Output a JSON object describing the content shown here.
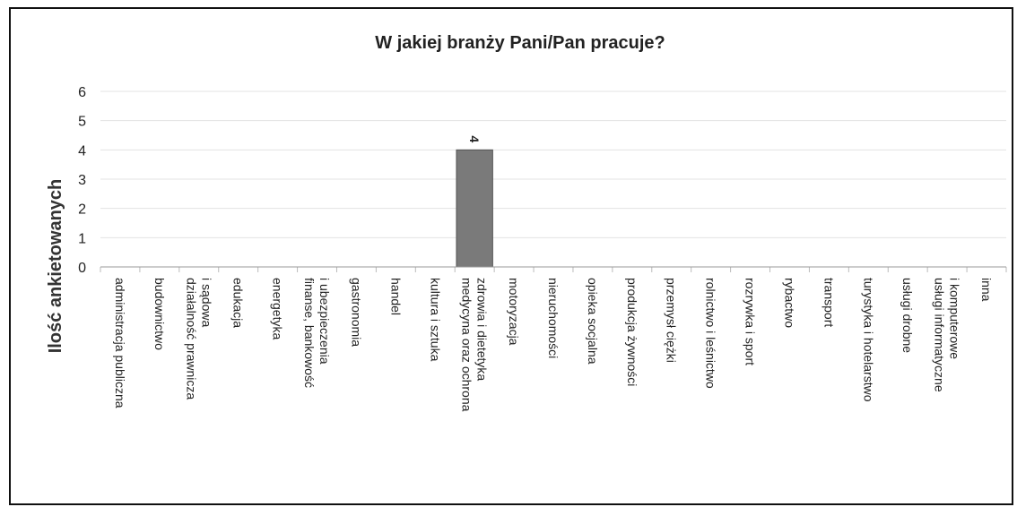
{
  "chart_data": {
    "type": "bar",
    "title": "W jakiej branży Pani/Pan pracuje?",
    "xlabel": "",
    "ylabel": "Ilość ankietowanych",
    "ylim": [
      0,
      6
    ],
    "yticks": [
      0,
      1,
      2,
      3,
      4,
      5,
      6
    ],
    "grid": true,
    "legend": "none",
    "bar_color": "#7a7a7a",
    "categories": [
      [
        "administracja publiczna"
      ],
      [
        "budownictwo"
      ],
      [
        "działalność prawnicza",
        "i sądowa"
      ],
      [
        "edukacja"
      ],
      [
        "energetyka"
      ],
      [
        "finanse, bankowość",
        "i ubezpieczenia"
      ],
      [
        "gastronomia"
      ],
      [
        "handel"
      ],
      [
        "kultura i sztuka"
      ],
      [
        "medycyna oraz ochrona",
        "zdrowia i dietetyka"
      ],
      [
        "motoryzacja"
      ],
      [
        "nieruchomości"
      ],
      [
        "opieka socjalna"
      ],
      [
        "produkcja żywności"
      ],
      [
        "przemysł ciężki"
      ],
      [
        "rolnictwo i leśnictwo"
      ],
      [
        "rozrywka i sport"
      ],
      [
        "rybactwo"
      ],
      [
        "transport"
      ],
      [
        "turystyka i hotelarstwo"
      ],
      [
        "usługi drobne"
      ],
      [
        "usługi informatyczne",
        "i komputerowe"
      ],
      [
        "inna"
      ]
    ],
    "values": [
      0,
      0,
      0,
      0,
      0,
      0,
      0,
      0,
      0,
      4,
      0,
      0,
      0,
      0,
      0,
      0,
      0,
      0,
      0,
      0,
      0,
      0,
      0
    ],
    "data_labels": [
      null,
      null,
      null,
      null,
      null,
      null,
      null,
      null,
      null,
      "4",
      null,
      null,
      null,
      null,
      null,
      null,
      null,
      null,
      null,
      null,
      null,
      null,
      null
    ]
  }
}
